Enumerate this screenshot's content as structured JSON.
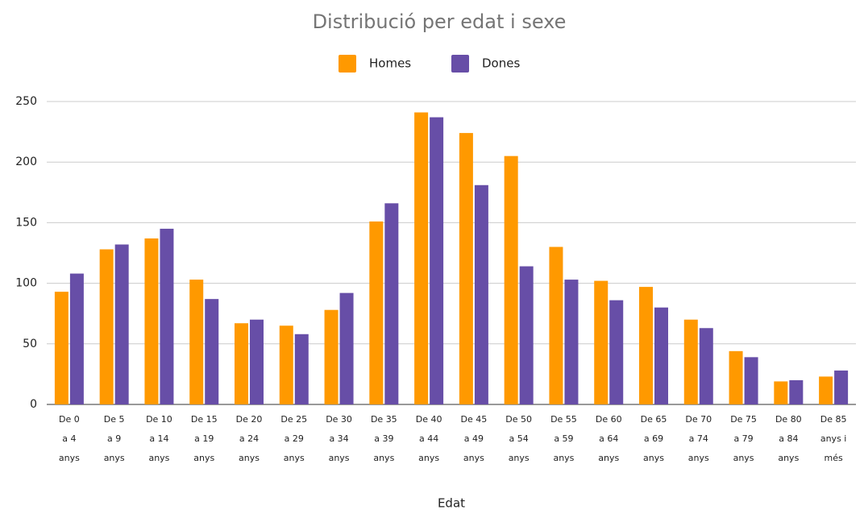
{
  "chart_data": {
    "type": "bar",
    "title": "Distribució per edat i sexe",
    "x_label": "Edat",
    "categories": [
      [
        "De 0",
        "a 4",
        "anys"
      ],
      [
        "De 5",
        "a 9",
        "anys"
      ],
      [
        "De 10",
        "a 14",
        "anys"
      ],
      [
        "De 15",
        "a 19",
        "anys"
      ],
      [
        "De 20",
        "a 24",
        "anys"
      ],
      [
        "De 25",
        "a 29",
        "anys"
      ],
      [
        "De 30",
        "a 34",
        "anys"
      ],
      [
        "De 35",
        "a 39",
        "anys"
      ],
      [
        "De 40",
        "a 44",
        "anys"
      ],
      [
        "De 45",
        "a 49",
        "anys"
      ],
      [
        "De 50",
        "a 54",
        "anys"
      ],
      [
        "De 55",
        "a 59",
        "anys"
      ],
      [
        "De 60",
        "a 64",
        "anys"
      ],
      [
        "De 65",
        "a 69",
        "anys"
      ],
      [
        "De 70",
        "a 74",
        "anys"
      ],
      [
        "De 75",
        "a 79",
        "anys"
      ],
      [
        "De 80",
        "a 84",
        "anys"
      ],
      [
        "De 85",
        "anys i",
        "més"
      ]
    ],
    "series": [
      {
        "name": "Homes",
        "color": "#ff9900",
        "values": [
          93,
          128,
          137,
          103,
          67,
          65,
          78,
          151,
          241,
          224,
          205,
          130,
          102,
          97,
          70,
          44,
          19,
          23
        ]
      },
      {
        "name": "Dones",
        "color": "#674ea7",
        "values": [
          108,
          132,
          145,
          87,
          70,
          58,
          92,
          166,
          237,
          181,
          114,
          103,
          86,
          80,
          63,
          39,
          20,
          28
        ]
      }
    ],
    "ylim": [
      0,
      250
    ],
    "yticks": [
      0,
      50,
      100,
      150,
      200,
      250
    ],
    "grid": true,
    "legend": "top"
  }
}
